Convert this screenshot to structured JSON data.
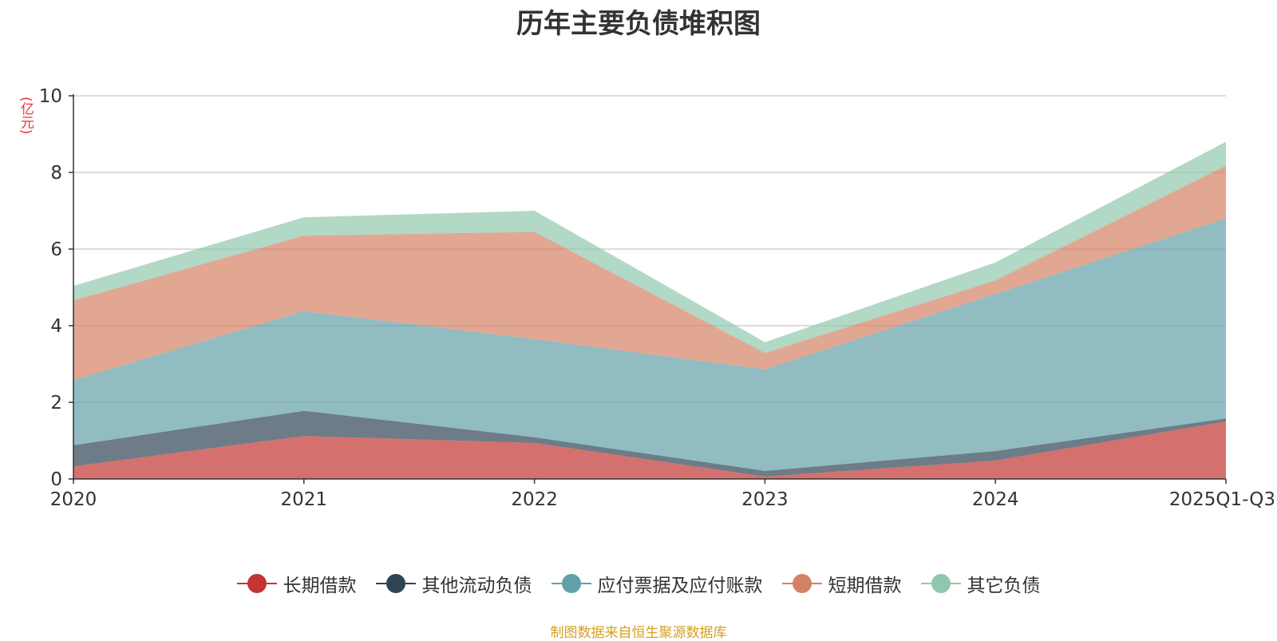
{
  "chart_data": {
    "type": "area",
    "stacked": true,
    "title": "历年主要负债堆积图",
    "ylabel": "(亿元)",
    "xlabel": "",
    "categories": [
      "2020",
      "2021",
      "2022",
      "2023",
      "2024",
      "2025Q1-Q3"
    ],
    "ylim": [
      0,
      10
    ],
    "yticks": [
      0,
      2,
      4,
      6,
      8,
      10
    ],
    "grid": true,
    "legend_position": "bottom",
    "series": [
      {
        "name": "长期借款",
        "color": "#c23531",
        "values": [
          0.33,
          1.12,
          0.94,
          0.06,
          0.48,
          1.5
        ]
      },
      {
        "name": "其他流动负债",
        "color": "#2f4554",
        "values": [
          0.55,
          0.66,
          0.15,
          0.15,
          0.25,
          0.08
        ]
      },
      {
        "name": "应付票据及应付账款",
        "color": "#61a0a8",
        "values": [
          1.7,
          2.6,
          2.56,
          2.65,
          4.1,
          5.22
        ]
      },
      {
        "name": "短期借款",
        "color": "#d48265",
        "values": [
          2.08,
          1.97,
          2.8,
          0.43,
          0.35,
          1.38
        ]
      },
      {
        "name": "其它负债",
        "color": "#91c7ae",
        "values": [
          0.38,
          0.48,
          0.55,
          0.28,
          0.47,
          0.62
        ]
      }
    ]
  },
  "source_note": "制图数据来自恒生聚源数据库"
}
